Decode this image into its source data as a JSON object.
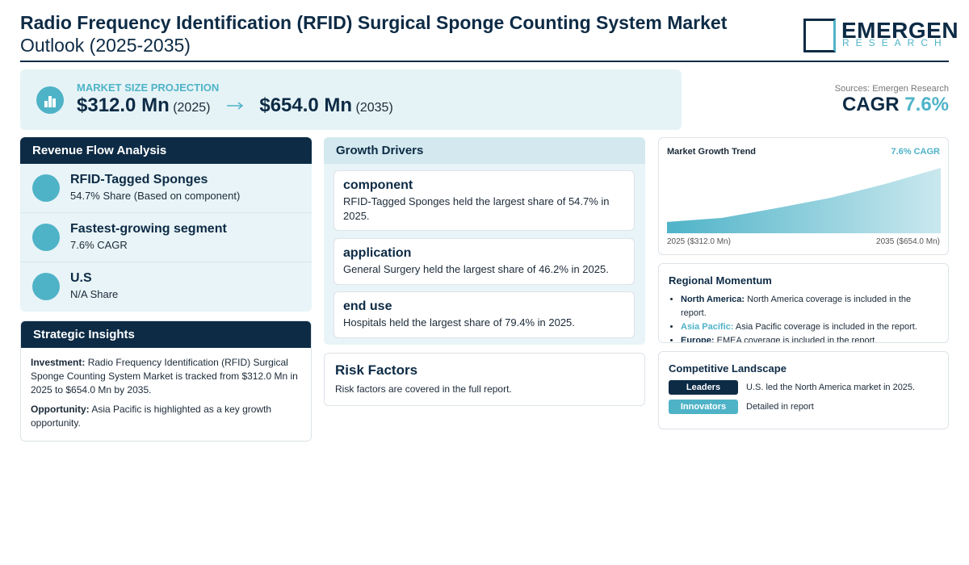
{
  "header": {
    "title": "Radio Frequency Identification (RFID) Surgical Sponge Counting System Market",
    "subtitle": "Outlook (2025-2035)",
    "logo_top": "EMERGEN",
    "logo_bottom": "RESEARCH"
  },
  "projection": {
    "label": "MARKET SIZE PROJECTION",
    "start_value": "$312.0 Mn",
    "start_year": "(2025)",
    "end_value": "$654.0 Mn",
    "end_year": "(2035)"
  },
  "summary": {
    "sources": "Sources: Emergen Research",
    "cagr_label": "CAGR",
    "cagr_value": "7.6%"
  },
  "revenue_flow": {
    "title": "Revenue Flow Analysis",
    "items": [
      {
        "title": "RFID-Tagged Sponges",
        "detail": "54.7% Share (Based on component)"
      },
      {
        "title": "Fastest-growing segment",
        "detail": "7.6% CAGR"
      },
      {
        "title": "U.S",
        "detail": "N/A Share"
      }
    ]
  },
  "strategic_insights": {
    "title": "Strategic Insights",
    "items": [
      {
        "label": "Investment:",
        "text": "Radio Frequency Identification (RFID) Surgical Sponge Counting System Market is tracked from $312.0 Mn in 2025 to $654.0 Mn by 2035."
      },
      {
        "label": "Opportunity:",
        "text": "Asia Pacific is highlighted as a key growth opportunity."
      }
    ]
  },
  "growth_drivers": {
    "title": "Growth Drivers",
    "items": [
      {
        "title": "component",
        "text": "RFID-Tagged Sponges held the largest share of 54.7% in 2025."
      },
      {
        "title": "application",
        "text": "General Surgery held the largest share of 46.2% in 2025."
      },
      {
        "title": "end use",
        "text": "Hospitals held the largest share of 79.4% in 2025."
      }
    ]
  },
  "risk_factors": {
    "title": "Risk Factors",
    "text": "Risk factors are covered in the full report."
  },
  "trend": {
    "title": "Market Growth Trend",
    "cagr": "7.6% CAGR",
    "start_label": "2025 ($312.0 Mn)",
    "end_label": "2035 ($654.0 Mn)"
  },
  "regional_momentum": {
    "title": "Regional Momentum",
    "items": [
      {
        "label": "North America:",
        "text": "North America coverage is included in the report."
      },
      {
        "label": "Asia Pacific:",
        "text": "Asia Pacific coverage is included in the report."
      },
      {
        "label": "Europe:",
        "text": "EMEA coverage is included in the report."
      }
    ]
  },
  "competitive_landscape": {
    "title": "Competitive Landscape",
    "rows": [
      {
        "badge": "Leaders",
        "text": "U.S. led the North America market in 2025."
      },
      {
        "badge": "Innovators",
        "text": "Detailed in report"
      }
    ]
  }
}
